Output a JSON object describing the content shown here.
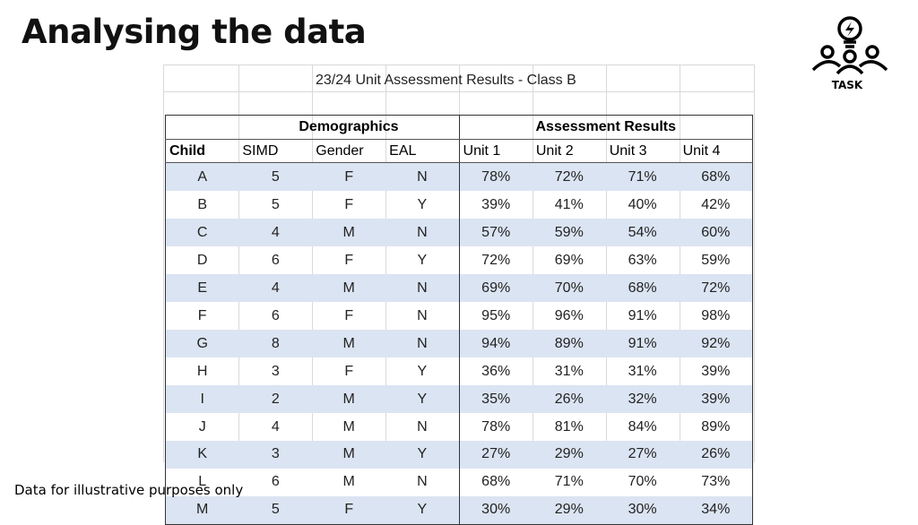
{
  "page": {
    "title": "Analysing the data",
    "footnote": "Data for illustrative purposes only",
    "task_icon": {
      "icon": "lightbulb-group-icon",
      "label": "TASK"
    }
  },
  "sheet": {
    "title": "23/24 Unit Assessment Results - Class B",
    "group_headers": [
      "Demographics",
      "Assessment Results"
    ],
    "columns": [
      "Child",
      "SIMD",
      "Gender",
      "EAL",
      "Unit 1",
      "Unit 2",
      "Unit 3",
      "Unit 4"
    ],
    "rows": [
      [
        "A",
        "5",
        "F",
        "N",
        "78%",
        "72%",
        "71%",
        "68%"
      ],
      [
        "B",
        "5",
        "F",
        "Y",
        "39%",
        "41%",
        "40%",
        "42%"
      ],
      [
        "C",
        "4",
        "M",
        "N",
        "57%",
        "59%",
        "54%",
        "60%"
      ],
      [
        "D",
        "6",
        "F",
        "Y",
        "72%",
        "69%",
        "63%",
        "59%"
      ],
      [
        "E",
        "4",
        "M",
        "N",
        "69%",
        "70%",
        "68%",
        "72%"
      ],
      [
        "F",
        "6",
        "F",
        "N",
        "95%",
        "96%",
        "91%",
        "98%"
      ],
      [
        "G",
        "8",
        "M",
        "N",
        "94%",
        "89%",
        "91%",
        "92%"
      ],
      [
        "H",
        "3",
        "F",
        "Y",
        "36%",
        "31%",
        "31%",
        "39%"
      ],
      [
        "I",
        "2",
        "M",
        "Y",
        "35%",
        "26%",
        "32%",
        "39%"
      ],
      [
        "J",
        "4",
        "M",
        "N",
        "78%",
        "81%",
        "84%",
        "89%"
      ],
      [
        "K",
        "3",
        "M",
        "Y",
        "27%",
        "29%",
        "27%",
        "26%"
      ],
      [
        "L",
        "6",
        "M",
        "N",
        "68%",
        "71%",
        "70%",
        "73%"
      ],
      [
        "M",
        "5",
        "F",
        "Y",
        "30%",
        "29%",
        "30%",
        "34%"
      ]
    ],
    "colors": {
      "band": "#dbe4f2",
      "border": "#333333",
      "gridline": "#d9d9d9"
    }
  }
}
